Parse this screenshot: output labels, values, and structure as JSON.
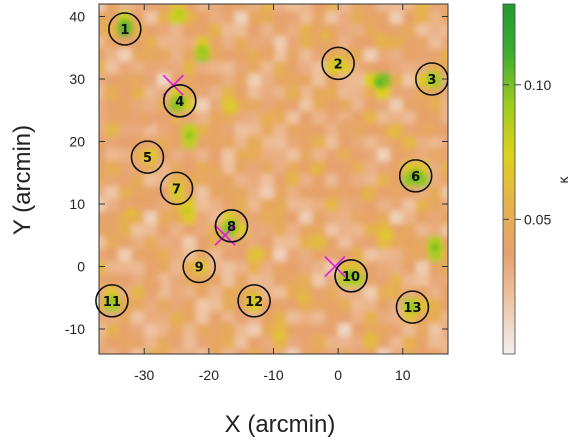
{
  "chart_data": {
    "type": "heatmap",
    "xlabel": "X (arcmin)",
    "ylabel": "Y (arcmin)",
    "xlim": [
      -37,
      17
    ],
    "ylim": [
      -14,
      42
    ],
    "x_ticks": [
      "-30",
      "-20",
      "-10",
      "0",
      "10"
    ],
    "y_ticks": [
      "-10",
      "0",
      "10",
      "20",
      "30",
      "40"
    ],
    "x_tick_values": [
      -30,
      -20,
      -10,
      0,
      10
    ],
    "y_tick_values": [
      -10,
      0,
      10,
      20,
      30,
      40
    ],
    "colorbar": {
      "label": "κ",
      "range": [
        0.0,
        0.13
      ],
      "tick_values": [
        0.05,
        0.1
      ],
      "tick_labels": [
        "0.05",
        "0.10"
      ],
      "colors": [
        "#f2eef2",
        "#efc8a8",
        "#e6a16e",
        "#e6b24c",
        "#dcd21a",
        "#9ccb1e",
        "#3fae2f",
        "#219a2f"
      ]
    },
    "peak_markers": [
      {
        "label": "1",
        "x": -33,
        "y": 38
      },
      {
        "label": "2",
        "x": 0,
        "y": 32.5
      },
      {
        "label": "3",
        "x": 14.5,
        "y": 30
      },
      {
        "label": "4",
        "x": -24.5,
        "y": 26.5
      },
      {
        "label": "5",
        "x": -29.5,
        "y": 17.5
      },
      {
        "label": "6",
        "x": 12,
        "y": 14.5
      },
      {
        "label": "7",
        "x": -25,
        "y": 12.5
      },
      {
        "label": "8",
        "x": -16.5,
        "y": 6.5
      },
      {
        "label": "9",
        "x": -21.5,
        "y": 0
      },
      {
        "label": "10",
        "x": 2,
        "y": -1.5
      },
      {
        "label": "11",
        "x": -35,
        "y": -5.5
      },
      {
        "label": "12",
        "x": -13,
        "y": -5.5
      },
      {
        "label": "13",
        "x": 11.5,
        "y": -6.5
      }
    ],
    "blue_circles": [
      {
        "x": -24.5,
        "y": 26.5
      },
      {
        "x": -16.5,
        "y": 6.5
      },
      {
        "x": 2,
        "y": -1.5
      }
    ],
    "cross_markers": [
      {
        "x": -25.5,
        "y": 29
      },
      {
        "x": -17.5,
        "y": 5
      },
      {
        "x": -0.5,
        "y": 0
      }
    ],
    "hotspots": [
      {
        "x": -33,
        "y": 38.5,
        "v": 0.12
      },
      {
        "x": -24.5,
        "y": 40.5,
        "v": 0.09
      },
      {
        "x": -21,
        "y": 34.5,
        "v": 0.1
      },
      {
        "x": -28.5,
        "y": 34,
        "v": 0.05
      },
      {
        "x": -31.5,
        "y": 29.5,
        "v": 0.05
      },
      {
        "x": -35,
        "y": 27.5,
        "v": 0.055
      },
      {
        "x": -24.5,
        "y": 26.5,
        "v": 0.11
      },
      {
        "x": -16.5,
        "y": 25.5,
        "v": 0.075
      },
      {
        "x": -23,
        "y": 21,
        "v": 0.1
      },
      {
        "x": -13,
        "y": 19.5,
        "v": 0.055
      },
      {
        "x": -29.5,
        "y": 17.5,
        "v": 0.075
      },
      {
        "x": -34.5,
        "y": 15.5,
        "v": 0.055
      },
      {
        "x": -25,
        "y": 12.5,
        "v": 0.08
      },
      {
        "x": -23.5,
        "y": 9,
        "v": 0.085
      },
      {
        "x": -32,
        "y": 8.5,
        "v": 0.065
      },
      {
        "x": -16.5,
        "y": 6.5,
        "v": 0.11
      },
      {
        "x": -12.5,
        "y": 2,
        "v": 0.07
      },
      {
        "x": -21.5,
        "y": 0,
        "v": 0.07
      },
      {
        "x": -35,
        "y": -5.5,
        "v": 0.1
      },
      {
        "x": -28.5,
        "y": -3,
        "v": 0.045
      },
      {
        "x": -13,
        "y": -5.5,
        "v": 0.08
      },
      {
        "x": -9,
        "y": -11,
        "v": 0.07
      },
      {
        "x": -5.5,
        "y": -5,
        "v": 0.065
      },
      {
        "x": -3,
        "y": 4,
        "v": 0.065
      },
      {
        "x": -7,
        "y": 27.5,
        "v": 0.055
      },
      {
        "x": -3.5,
        "y": 15.5,
        "v": 0.06
      },
      {
        "x": -9,
        "y": 9,
        "v": 0.055
      },
      {
        "x": 0,
        "y": 32.5,
        "v": 0.085
      },
      {
        "x": -2,
        "y": 37,
        "v": 0.06
      },
      {
        "x": 6.5,
        "y": 36.5,
        "v": 0.06
      },
      {
        "x": 6.5,
        "y": 29.5,
        "v": 0.115
      },
      {
        "x": 14.5,
        "y": 30,
        "v": 0.1
      },
      {
        "x": 12.5,
        "y": 40.5,
        "v": 0.06
      },
      {
        "x": 8.5,
        "y": 21.5,
        "v": 0.065
      },
      {
        "x": 12,
        "y": 14.5,
        "v": 0.12
      },
      {
        "x": 4.5,
        "y": 11.5,
        "v": 0.06
      },
      {
        "x": 7.5,
        "y": 5,
        "v": 0.075
      },
      {
        "x": 15,
        "y": 3,
        "v": 0.105
      },
      {
        "x": 2,
        "y": -1.5,
        "v": 0.11
      },
      {
        "x": 8,
        "y": -4,
        "v": 0.06
      },
      {
        "x": 11.5,
        "y": -6.5,
        "v": 0.1
      },
      {
        "x": 5,
        "y": -11.5,
        "v": 0.065
      },
      {
        "x": -3.5,
        "y": -12,
        "v": 0.05
      },
      {
        "x": -25.5,
        "y": -11,
        "v": 0.045
      },
      {
        "x": -19,
        "y": 15,
        "v": 0.05
      },
      {
        "x": -11,
        "y": 34.5,
        "v": 0.045
      },
      {
        "x": 1.5,
        "y": 22.5,
        "v": 0.045
      },
      {
        "x": -30,
        "y": 23.5,
        "v": 0.045
      },
      {
        "x": -17.5,
        "y": -10,
        "v": 0.05
      },
      {
        "x": 14,
        "y": 22,
        "v": 0.05
      }
    ]
  }
}
